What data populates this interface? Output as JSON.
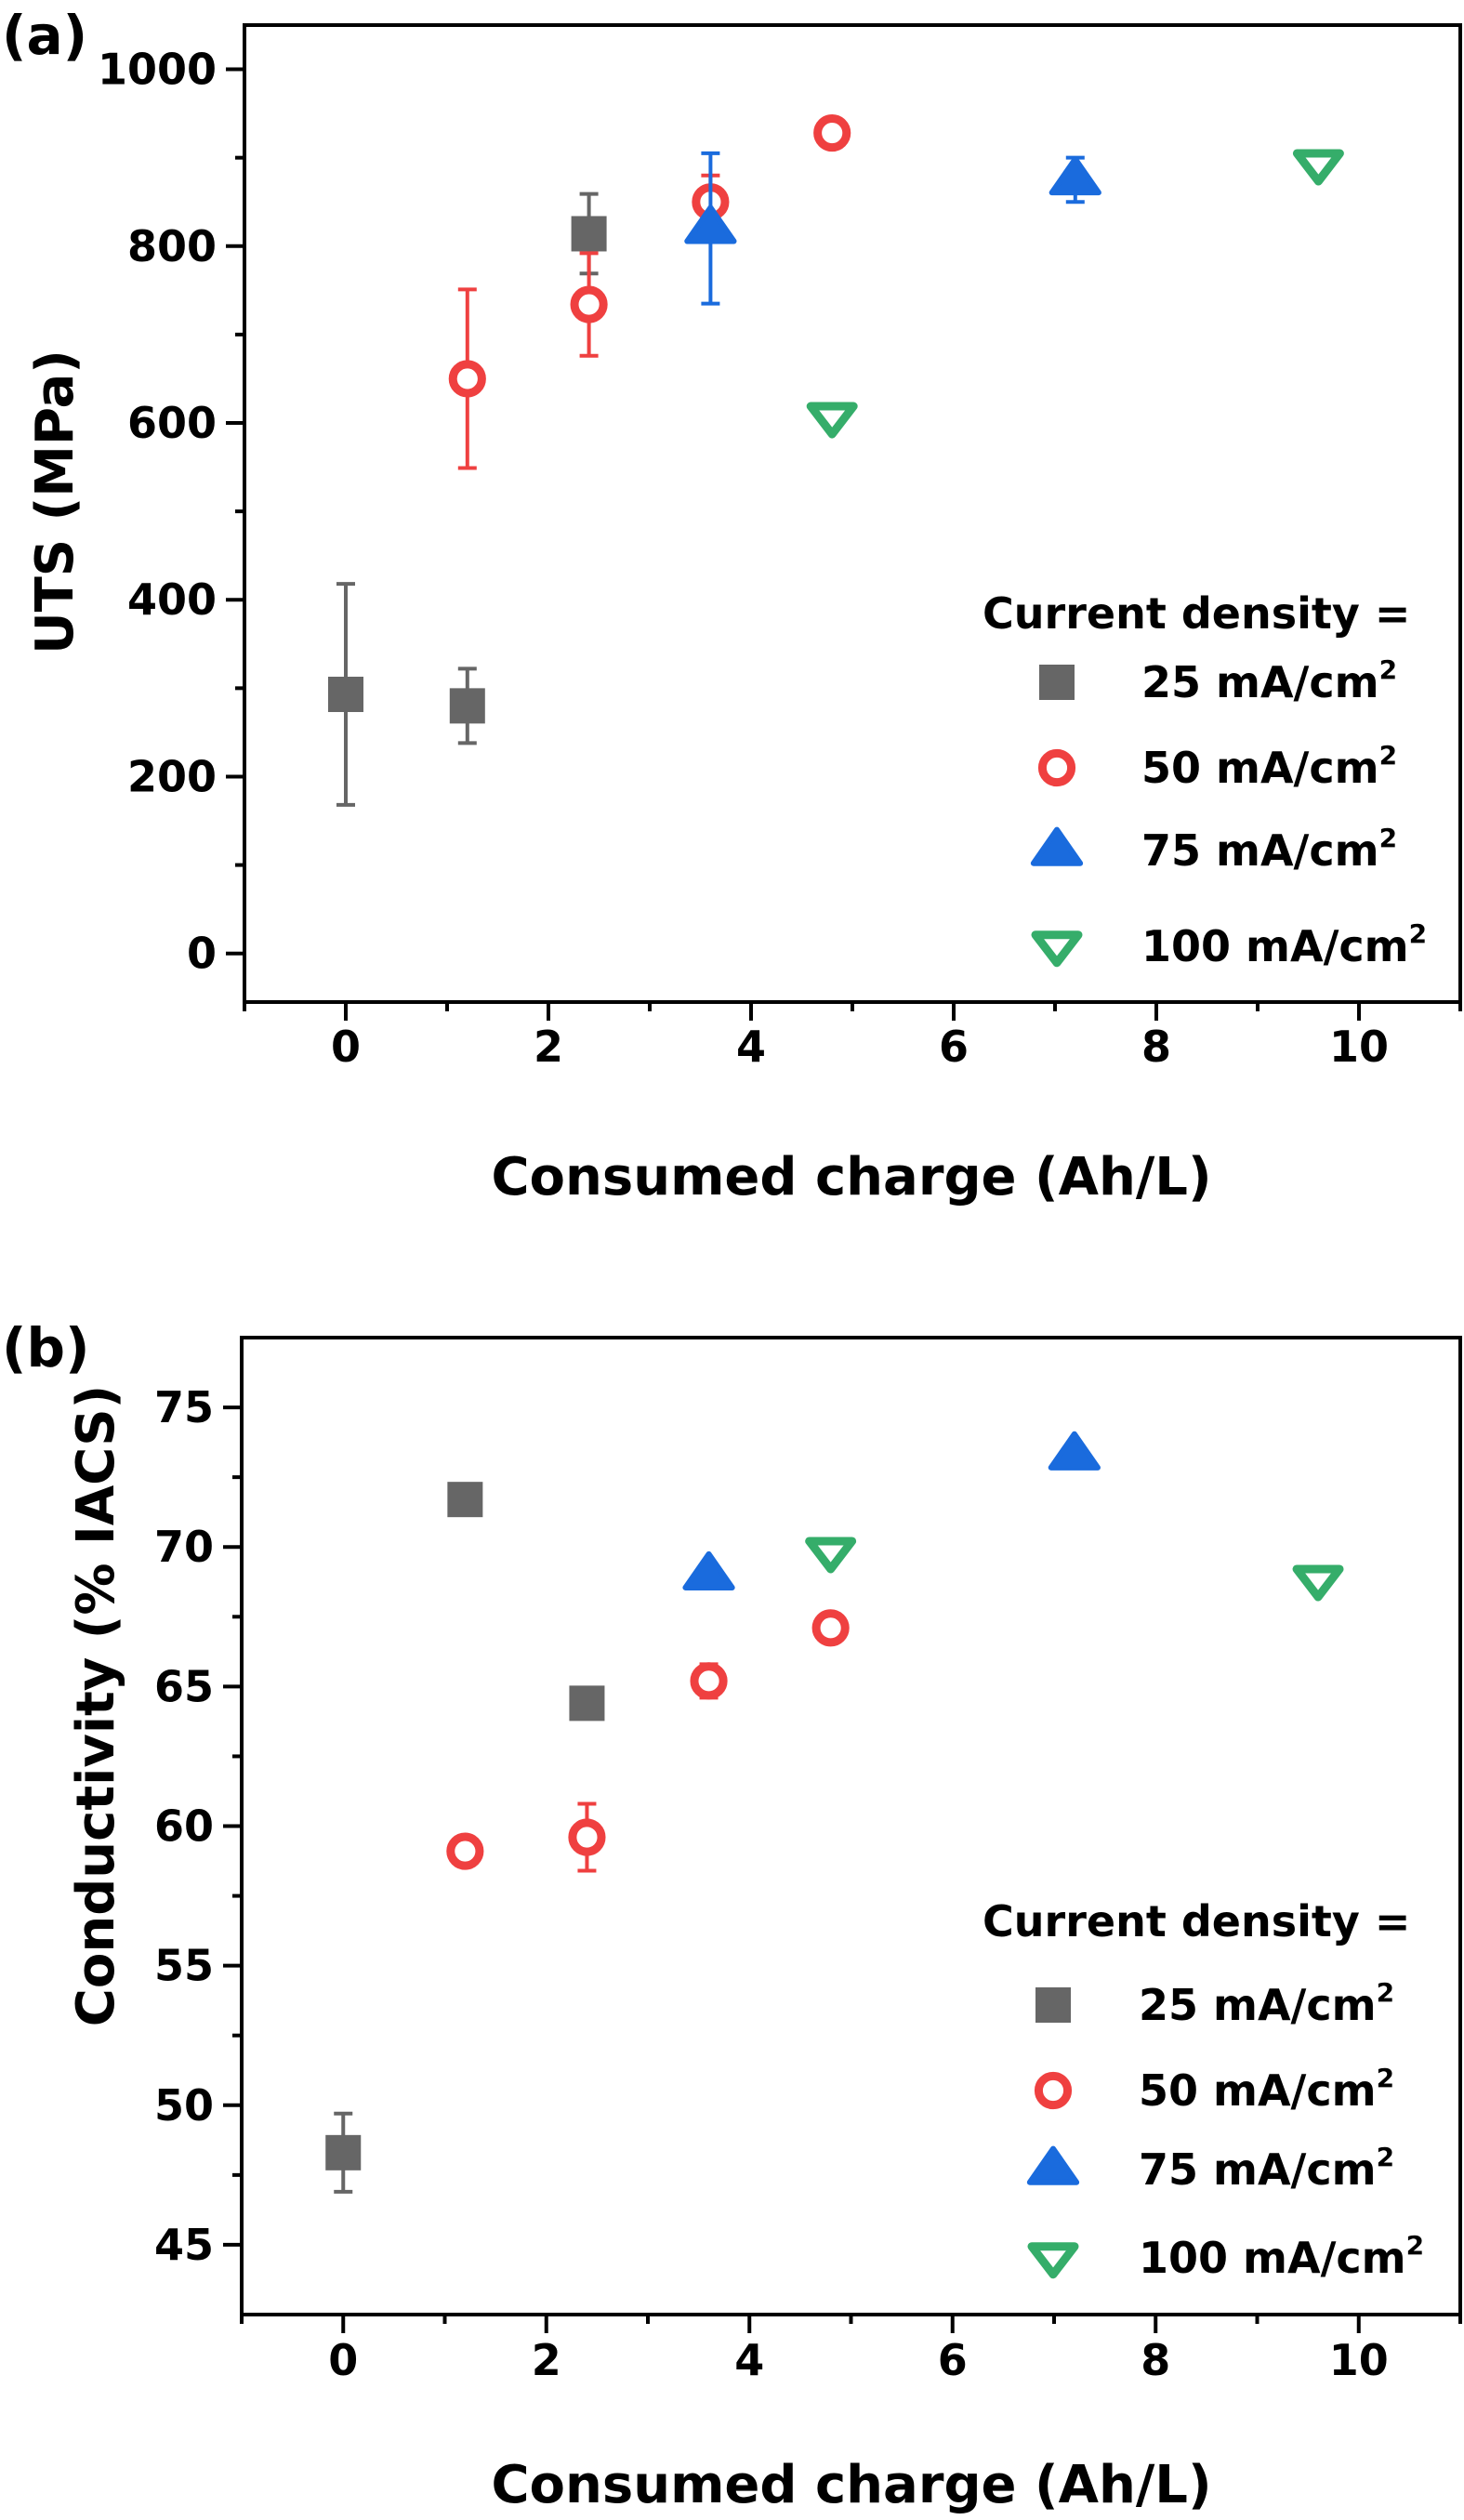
{
  "chart_data": [
    {
      "panel_label": "(a)",
      "type": "scatter",
      "title": "",
      "xlabel": "Consumed charge (Ah/L)",
      "ylabel": "UTS (MPa)",
      "xlim": [
        -1,
        11
      ],
      "ylim": [
        -55,
        1050
      ],
      "xticks": [
        0,
        2,
        4,
        6,
        8,
        10
      ],
      "xticks_minor": [
        1,
        3,
        5,
        7,
        9
      ],
      "yticks": [
        0,
        200,
        400,
        600,
        800,
        1000
      ],
      "yticks_minor": [
        100,
        300,
        500,
        700,
        900
      ],
      "grid": false,
      "legend": {
        "title": "Current density =",
        "placement": "bottom-right"
      },
      "series": [
        {
          "name": "25 mA/cm2",
          "label_main": "25 mA/cm",
          "label_sup": "2",
          "marker": "square",
          "fill": "filled",
          "color": "#666666",
          "points": [
            {
              "x": 0,
              "y": 293,
              "err": 125
            },
            {
              "x": 1.2,
              "y": 280,
              "err": 42
            },
            {
              "x": 2.4,
              "y": 814,
              "err": 45
            }
          ]
        },
        {
          "name": "50 mA/cm2",
          "label_main": "50 mA/cm",
          "label_sup": "2",
          "marker": "circle",
          "fill": "open",
          "color": "#EF4040",
          "points": [
            {
              "x": 1.2,
              "y": 650,
              "err": 101
            },
            {
              "x": 2.4,
              "y": 734,
              "err": 58
            },
            {
              "x": 3.6,
              "y": 850,
              "err": 30
            },
            {
              "x": 4.8,
              "y": 928,
              "err": 5
            }
          ]
        },
        {
          "name": "75 mA/cm2",
          "label_main": "75 mA/cm",
          "label_sup": "2",
          "marker": "triangle-up",
          "fill": "filled",
          "color": "#1A6BDD",
          "points": [
            {
              "x": 3.6,
              "y": 820,
              "err": 85
            },
            {
              "x": 7.2,
              "y": 875,
              "err": 25
            }
          ]
        },
        {
          "name": "100 mA/cm2",
          "label_main": "100 mA/cm",
          "label_sup": "2",
          "marker": "triangle-down",
          "fill": "open",
          "color": "#35AD6A",
          "points": [
            {
              "x": 4.8,
              "y": 606,
              "err": 4
            },
            {
              "x": 9.6,
              "y": 892,
              "err": 4
            }
          ]
        }
      ]
    },
    {
      "panel_label": "(b)",
      "type": "scatter",
      "title": "",
      "xlabel": "Consumed charge (Ah/L)",
      "ylabel": "Conductivity (% IACS)",
      "xlim": [
        -1,
        11
      ],
      "ylim": [
        42.5,
        77.5
      ],
      "xticks": [
        0,
        2,
        4,
        6,
        8,
        10
      ],
      "xticks_minor": [
        1,
        3,
        5,
        7,
        9
      ],
      "yticks": [
        45,
        50,
        55,
        60,
        65,
        70,
        75
      ],
      "yticks_minor": [
        47.5,
        52.5,
        57.5,
        62.5,
        67.5,
        72.5
      ],
      "grid": false,
      "legend": {
        "title": "Current density =",
        "placement": "bottom-right"
      },
      "series": [
        {
          "name": "25 mA/cm2",
          "label_main": "25 mA/cm",
          "label_sup": "2",
          "marker": "square",
          "fill": "filled",
          "color": "#666666",
          "points": [
            {
              "x": 0,
              "y": 48.3,
              "err": 1.4
            },
            {
              "x": 1.2,
              "y": 71.7,
              "err": 0.1
            },
            {
              "x": 2.4,
              "y": 64.4,
              "err": 0.1
            }
          ]
        },
        {
          "name": "50 mA/cm2",
          "label_main": "50 mA/cm",
          "label_sup": "2",
          "marker": "circle",
          "fill": "open",
          "color": "#EF4040",
          "points": [
            {
              "x": 1.2,
              "y": 59.1,
              "err": 0.3
            },
            {
              "x": 2.4,
              "y": 59.6,
              "err": 1.2
            },
            {
              "x": 3.6,
              "y": 65.2,
              "err": 0.6
            },
            {
              "x": 4.8,
              "y": 67.1,
              "err": 0.3
            }
          ]
        },
        {
          "name": "75 mA/cm2",
          "label_main": "75 mA/cm",
          "label_sup": "2",
          "marker": "triangle-up",
          "fill": "filled",
          "color": "#1A6BDD",
          "points": [
            {
              "x": 3.6,
              "y": 69.0,
              "err": 0.1
            },
            {
              "x": 7.2,
              "y": 73.3,
              "err": 0.1
            }
          ]
        },
        {
          "name": "100 mA/cm2",
          "label_main": "100 mA/cm",
          "label_sup": "2",
          "marker": "triangle-down",
          "fill": "open",
          "color": "#35AD6A",
          "points": [
            {
              "x": 4.8,
              "y": 69.8,
              "err": 0.3
            },
            {
              "x": 9.6,
              "y": 68.8,
              "err": 0.1
            }
          ]
        }
      ]
    }
  ]
}
